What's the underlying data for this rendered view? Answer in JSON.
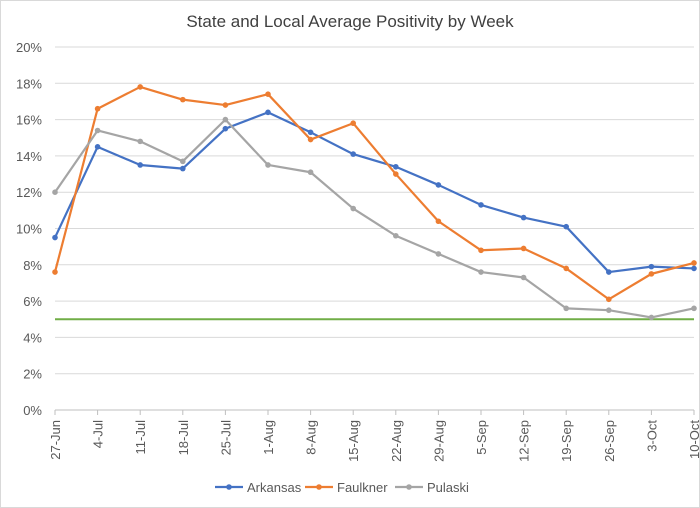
{
  "chart_data": {
    "type": "line",
    "title": "State and Local Average Positivity by Week",
    "xlabel": "",
    "ylabel": "",
    "categories": [
      "27-Jun",
      "4-Jul",
      "11-Jul",
      "18-Jul",
      "25-Jul",
      "1-Aug",
      "8-Aug",
      "15-Aug",
      "22-Aug",
      "29-Aug",
      "5-Sep",
      "12-Sep",
      "19-Sep",
      "26-Sep",
      "3-Oct",
      "10-Oct"
    ],
    "ylim": [
      0,
      20
    ],
    "yticks": [
      "0%",
      "2%",
      "4%",
      "6%",
      "8%",
      "10%",
      "12%",
      "14%",
      "16%",
      "18%",
      "20%"
    ],
    "grid": true,
    "legend_position": "bottom",
    "series": [
      {
        "name": "Arkansas",
        "color": "#4472C4",
        "values": [
          9.5,
          14.5,
          13.5,
          13.3,
          15.5,
          16.4,
          15.3,
          14.1,
          13.4,
          12.4,
          11.3,
          10.6,
          10.1,
          7.6,
          7.9,
          7.8
        ]
      },
      {
        "name": "Faulkner",
        "color": "#ED7D31",
        "values": [
          7.6,
          16.6,
          17.8,
          17.1,
          16.8,
          17.4,
          14.9,
          15.8,
          13.0,
          10.4,
          8.8,
          8.9,
          7.8,
          6.1,
          7.5,
          8.1
        ]
      },
      {
        "name": "Pulaski",
        "color": "#A5A5A5",
        "values": [
          12.0,
          15.4,
          14.8,
          13.7,
          16.0,
          13.5,
          13.1,
          11.1,
          9.6,
          8.6,
          7.6,
          7.3,
          5.6,
          5.5,
          5.1,
          5.6
        ]
      }
    ],
    "reference_line": {
      "value": 5,
      "color": "#70AD47"
    }
  }
}
